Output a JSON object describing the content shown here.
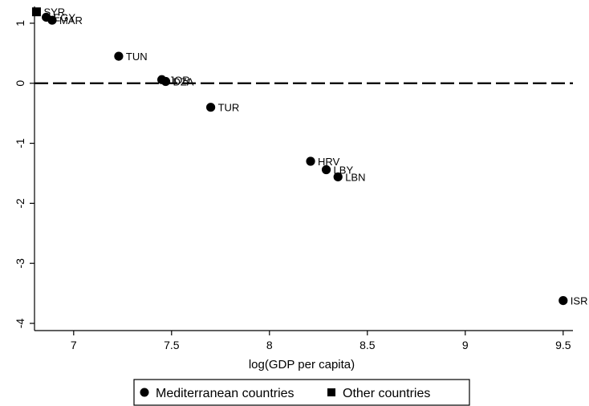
{
  "chart_data": {
    "type": "scatter",
    "xlabel": "log(GDP per capita)",
    "ylabel": "",
    "xlim": [
      6.8,
      9.55
    ],
    "ylim": [
      -4.12,
      1.28
    ],
    "xticks": [
      7,
      7.5,
      8,
      8.5,
      9,
      9.5
    ],
    "yticks": [
      -4,
      -3,
      -2,
      -1,
      0,
      1
    ],
    "reference_line": {
      "y": 0,
      "style": "dashed"
    },
    "legend": {
      "placement": "bottom"
    },
    "series": [
      {
        "name": "Mediterranean countries",
        "marker": "circle",
        "points": [
          {
            "label": "TUN",
            "x": 7.23,
            "y": 0.45
          },
          {
            "label": "JOR",
            "x": 7.45,
            "y": 0.06
          },
          {
            "label": "DZA",
            "x": 7.47,
            "y": 0.03
          },
          {
            "label": "TUR",
            "x": 7.7,
            "y": -0.4
          },
          {
            "label": "HRV",
            "x": 8.21,
            "y": -1.3
          },
          {
            "label": "LBY",
            "x": 8.29,
            "y": -1.44
          },
          {
            "label": "LBN",
            "x": 8.35,
            "y": -1.56
          },
          {
            "label": "ISR",
            "x": 9.5,
            "y": -3.62
          },
          {
            "label": "EGY",
            "x": 6.86,
            "y": 1.1
          },
          {
            "label": "MAR",
            "x": 6.89,
            "y": 1.05
          }
        ]
      },
      {
        "name": "Other countries",
        "marker": "square",
        "points": [
          {
            "label": "SYR",
            "x": 6.81,
            "y": 1.19
          }
        ]
      }
    ]
  }
}
